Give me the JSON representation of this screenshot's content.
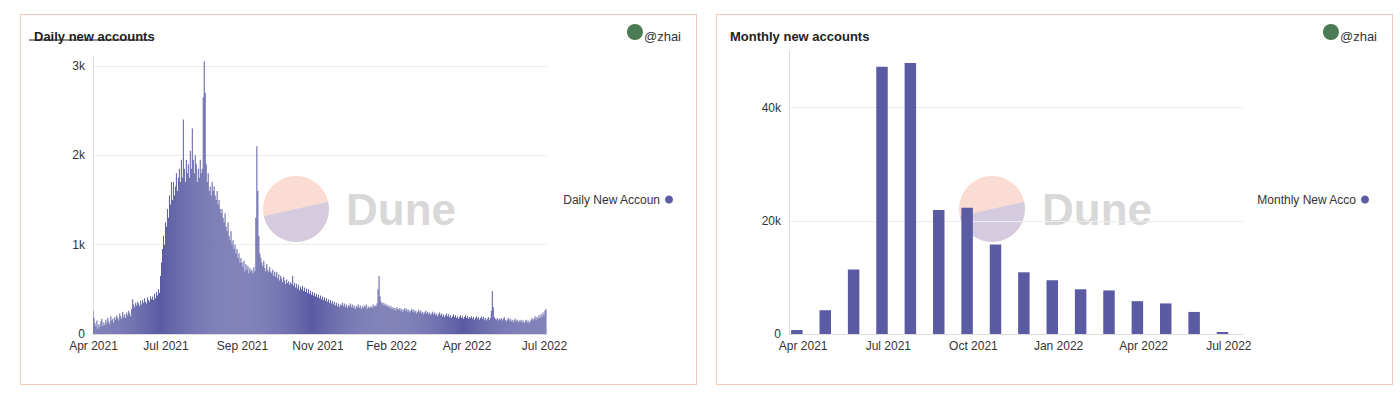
{
  "chart_data": [
    {
      "type": "bar",
      "title": "Daily new accounts",
      "subtitle": "@zhai",
      "annotations": [
        "Dune"
      ],
      "categories": [
        "Apr 2021",
        null,
        null,
        null,
        null,
        null,
        null,
        null,
        null,
        null,
        null,
        null,
        null,
        null,
        null,
        null,
        null,
        null,
        null,
        null,
        null,
        null,
        null,
        null,
        null,
        null,
        null,
        null,
        null,
        null,
        null,
        null,
        null,
        null,
        null,
        null,
        null,
        null,
        null,
        null,
        null,
        null,
        null,
        null,
        null,
        null,
        null,
        null,
        null,
        null,
        null,
        null,
        null,
        null,
        null,
        null,
        null,
        null,
        null,
        null,
        null,
        null,
        null,
        null,
        null,
        null,
        null,
        null,
        null,
        null,
        null,
        null,
        null,
        "Jul 2021",
        null,
        null,
        null,
        null,
        null,
        null,
        null,
        null,
        null,
        null,
        null,
        null,
        null,
        null,
        null,
        null,
        null,
        null,
        null,
        null,
        null,
        null,
        null,
        null,
        null,
        null,
        null,
        null,
        null,
        null,
        null,
        null,
        null,
        null,
        null,
        null,
        null,
        null,
        null,
        null,
        null,
        null,
        null,
        null,
        null,
        null,
        null,
        null,
        null,
        null,
        null,
        null,
        null,
        null,
        null,
        null,
        null,
        null,
        null,
        null,
        null,
        null,
        null,
        null,
        null,
        null,
        null,
        null,
        null,
        null,
        null,
        null,
        null,
        null,
        null,
        null,
        "Sep 2021",
        null,
        null,
        null,
        null,
        null,
        null,
        null,
        null,
        null,
        null,
        null,
        null,
        null,
        null,
        null,
        null,
        null,
        null,
        null,
        null,
        null,
        null,
        null,
        null,
        null,
        null,
        null,
        null,
        null,
        null,
        null,
        null,
        null,
        null,
        null,
        null,
        null,
        null,
        null,
        null,
        null,
        null,
        null,
        null,
        null,
        null,
        null,
        null,
        null,
        null,
        null,
        null,
        null,
        null,
        null,
        null,
        null,
        null,
        null,
        null,
        null,
        null,
        null,
        null,
        null,
        null,
        null,
        null,
        null,
        null,
        null,
        null,
        null,
        null,
        null,
        "Nov 2021",
        null,
        null,
        null,
        null,
        null,
        null,
        null,
        null,
        null,
        null,
        null,
        null,
        null,
        null,
        null,
        null,
        null,
        null,
        null,
        null,
        null,
        null,
        null,
        null,
        null,
        null,
        null,
        null,
        null,
        null,
        null,
        null,
        null,
        null,
        null,
        null,
        null,
        null,
        null,
        null,
        null,
        null,
        null,
        null,
        null,
        null,
        null,
        null,
        null,
        null,
        null,
        null,
        null,
        null,
        null,
        null,
        null,
        null,
        null,
        null,
        null,
        null,
        null,
        null,
        null,
        null,
        null,
        null,
        null,
        null,
        null,
        null,
        null,
        "Feb 2022",
        null,
        null,
        null,
        null,
        null,
        null,
        null,
        null,
        null,
        null,
        null,
        null,
        null,
        null,
        null,
        null,
        null,
        null,
        null,
        null,
        null,
        null,
        null,
        null,
        null,
        null,
        null,
        null,
        null,
        null,
        null,
        null,
        null,
        null,
        null,
        null,
        null,
        null,
        null,
        null,
        null,
        null,
        null,
        null,
        null,
        null,
        null,
        null,
        null,
        null,
        null,
        null,
        null,
        null,
        null,
        null,
        null,
        null,
        null,
        null,
        null,
        null,
        null,
        null,
        null,
        null,
        null,
        null,
        null,
        null,
        null,
        null,
        null,
        null,
        null,
        "Apr 2022",
        null,
        null,
        null,
        null,
        null,
        null,
        null,
        null,
        null,
        null,
        null,
        null,
        null,
        null,
        null,
        null,
        null,
        null,
        null,
        null,
        null,
        null,
        null,
        null,
        null,
        null,
        null,
        null,
        null,
        null,
        null,
        null,
        null,
        null,
        null,
        null,
        null,
        null,
        null,
        null,
        null,
        null,
        null,
        null,
        null,
        null,
        null,
        null,
        null,
        null,
        null,
        null,
        null,
        null,
        null,
        null,
        null,
        null,
        null,
        null,
        null,
        null,
        null,
        null,
        null,
        null,
        null,
        null,
        null,
        null,
        null,
        null,
        null,
        null,
        null,
        null,
        null,
        "Jul 2022",
        null,
        null
      ],
      "series": [
        {
          "name": "Daily New Accoun",
          "color": "#5a5ba3",
          "values": [
            260,
            180,
            120,
            90,
            150,
            60,
            110,
            80,
            140,
            170,
            90,
            130,
            100,
            160,
            120,
            180,
            140,
            110,
            200,
            150,
            170,
            130,
            190,
            160,
            210,
            180,
            150,
            230,
            200,
            170,
            250,
            190,
            220,
            180,
            240,
            210,
            260,
            230,
            200,
            280,
            390,
            330,
            300,
            350,
            320,
            360,
            340,
            310,
            370,
            330,
            380,
            350,
            400,
            360,
            340,
            410,
            380,
            360,
            420,
            390,
            420,
            380,
            450,
            400,
            470,
            430,
            500,
            460,
            650,
            800,
            950,
            1100,
            1000,
            1250,
            1200,
            1400,
            1300,
            1550,
            1450,
            1700,
            1500,
            1700,
            1550,
            1650,
            1800,
            1600,
            1750,
            1850,
            1700,
            1950,
            1750,
            2400,
            1850,
            1700,
            1950,
            1800,
            1900,
            1750,
            2050,
            1850,
            2300,
            1950,
            1800,
            2000,
            1900,
            1700,
            1850,
            1750,
            1950,
            1800,
            1850,
            2650,
            3050,
            2700,
            1900,
            1700,
            1800,
            1600,
            1650,
            1550,
            1700,
            1600,
            1650,
            1550,
            1500,
            1600,
            1450,
            1500,
            1400,
            1350,
            1400,
            1300,
            1250,
            1350,
            1200,
            1150,
            1250,
            1100,
            1050,
            1150,
            1000,
            1050,
            950,
            1000,
            900,
            950,
            850,
            900,
            800,
            850,
            800,
            750,
            820,
            700,
            780,
            720,
            760,
            680,
            740,
            700,
            720,
            680,
            750,
            700,
            1300,
            2100,
            1600,
            1100,
            900,
            850,
            800,
            760,
            820,
            740,
            700,
            780,
            720,
            690,
            750,
            700,
            680,
            720,
            650,
            700,
            640,
            690,
            620,
            670,
            600,
            650,
            620,
            580,
            640,
            600,
            560,
            610,
            570,
            590,
            550,
            580,
            560,
            650,
            540,
            570,
            520,
            560,
            510,
            550,
            490,
            530,
            500,
            540,
            480,
            520,
            470,
            510,
            460,
            500,
            450,
            480,
            440,
            470,
            430,
            460,
            420,
            450,
            410,
            440,
            400,
            430,
            390,
            420,
            380,
            410,
            370,
            400,
            360,
            390,
            350,
            380,
            340,
            370,
            330,
            360,
            320,
            350,
            310,
            340,
            300,
            330,
            320,
            350,
            310,
            340,
            300,
            330,
            290,
            320,
            310,
            340,
            300,
            330,
            290,
            320,
            280,
            310,
            300,
            330,
            290,
            320,
            280,
            310,
            290,
            320,
            300,
            330,
            280,
            310,
            290,
            300,
            310,
            290,
            330,
            300,
            320,
            310,
            340,
            500,
            650,
            420,
            360,
            330,
            350,
            320,
            340,
            310,
            330,
            300,
            320,
            290,
            310,
            280,
            300,
            270,
            290,
            260,
            300,
            280,
            270,
            290,
            260,
            280,
            250,
            270,
            290,
            260,
            280,
            250,
            270,
            240,
            260,
            280,
            250,
            270,
            240,
            260,
            230,
            250,
            270,
            240,
            260,
            230,
            250,
            220,
            240,
            260,
            230,
            250,
            220,
            240,
            210,
            230,
            250,
            220,
            240,
            210,
            230,
            200,
            220,
            240,
            210,
            230,
            200,
            220,
            190,
            210,
            230,
            200,
            220,
            190,
            210,
            180,
            200,
            220,
            190,
            210,
            180,
            200,
            170,
            190,
            210,
            180,
            200,
            170,
            190,
            210,
            180,
            200,
            170,
            190,
            180,
            200,
            170,
            190,
            160,
            180,
            200,
            170,
            190,
            160,
            180,
            200,
            170,
            190,
            160,
            180,
            150,
            170,
            190,
            160,
            180,
            260,
            480,
            300,
            190,
            170,
            160,
            180,
            150,
            170,
            160,
            180,
            150,
            170,
            190,
            160,
            140,
            160,
            180,
            150,
            170,
            140,
            160,
            130,
            150,
            170,
            140,
            160,
            130,
            150,
            140,
            160,
            130,
            150,
            120,
            140,
            160,
            130,
            150,
            120,
            140,
            160,
            180,
            150,
            170,
            200,
            160,
            190,
            170,
            210,
            180,
            220,
            190,
            240,
            210,
            260,
            280
          ]
        }
      ],
      "ylim": [
        0,
        3100
      ],
      "yticks": [
        0,
        {
          "value": 1000,
          "label": "1k"
        },
        {
          "value": 2000,
          "label": "2k"
        },
        {
          "value": 3000,
          "label": "3k"
        }
      ],
      "grid": true,
      "legend": "right"
    },
    {
      "type": "bar",
      "title": "Monthly new accounts",
      "subtitle": "@zhai",
      "annotations": [
        "Dune"
      ],
      "categories": [
        "Apr 2021",
        null,
        null,
        "Jul 2021",
        null,
        null,
        "Oct 2021",
        null,
        null,
        "Jan 2022",
        null,
        null,
        "Apr 2022",
        null,
        null,
        "Jul 2022"
      ],
      "series": [
        {
          "name": "Monthly New Acco",
          "color": "#5a5ba3",
          "values": [
            700,
            4200,
            11400,
            47200,
            47900,
            21900,
            22300,
            15800,
            10900,
            9500,
            7900,
            7700,
            5800,
            5400,
            3900,
            350
          ]
        }
      ],
      "ylim": [
        0,
        50000
      ],
      "yticks": [
        0,
        {
          "value": 20000,
          "label": "20k"
        },
        {
          "value": 40000,
          "label": "40k"
        }
      ],
      "grid": true,
      "legend": "right"
    }
  ]
}
